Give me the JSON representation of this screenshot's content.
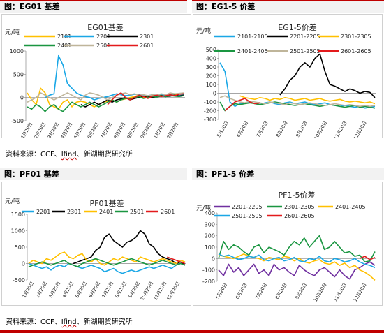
{
  "headers": {
    "top_left": "图：EG01 基差",
    "top_right": "图：EG1-5 价差",
    "bottom_left": "图：PF01 基差",
    "bottom_right": "图：PF1-5 价差"
  },
  "source": {
    "prefix": "资料来源：CCF、",
    "ifind": "Ifind",
    "suffix": "、新湖期货研究所"
  },
  "colors": {
    "accent": "#c00000",
    "header_bg": "#f2f2f2"
  },
  "chart_data": [
    {
      "id": "eg01",
      "type": "line",
      "title": "EG01基差",
      "ylabel": "元/吨",
      "ylim": [
        -500,
        1000
      ],
      "yticks": [
        -500,
        0,
        500,
        1000
      ],
      "xticks": [
        "1月20日",
        "2月20日",
        "3月20日",
        "4月20日",
        "5月20日",
        "6月20日",
        "7月20日",
        "8月20日",
        "9月20日",
        "10月20日",
        "11月20日",
        "12月20日"
      ],
      "legend_position": "top",
      "series": [
        {
          "name": "2101",
          "color": "#ffc000",
          "values": [
            100,
            -50,
            -150,
            200,
            100,
            -150,
            -200,
            -250,
            -100,
            -50,
            -200,
            -100,
            -80,
            -100,
            -150,
            -200,
            -150,
            -100,
            -80,
            -50,
            -100,
            -50,
            -30,
            0,
            20,
            50,
            0,
            30,
            50,
            20,
            60,
            40,
            50,
            80,
            40,
            60
          ]
        },
        {
          "name": "2201",
          "color": "#1aa7e6",
          "values": [
            null,
            null,
            null,
            null,
            0,
            50,
            80,
            900,
            700,
            300,
            200,
            100,
            50,
            20,
            0,
            -50,
            -20,
            0,
            20,
            50,
            80,
            60,
            40,
            50,
            70,
            60,
            50,
            40,
            60,
            50,
            70,
            40,
            60,
            50,
            40,
            60
          ]
        },
        {
          "name": "2301",
          "color": "#000000",
          "values": [
            null,
            null,
            null,
            null,
            null,
            null,
            null,
            null,
            null,
            null,
            null,
            null,
            -150,
            -200,
            -150,
            -100,
            -150,
            -100,
            -50,
            -100,
            -50,
            -30,
            0,
            -50,
            -20,
            0,
            20,
            30,
            0,
            20,
            40,
            20,
            30,
            50,
            30,
            50
          ]
        },
        {
          "name": "2401",
          "color": "#1a9641",
          "values": [
            -200,
            -250,
            -150,
            -200,
            -300,
            -200,
            -150,
            -250,
            -300,
            -200,
            -100,
            -150,
            -200,
            -150,
            -100,
            -150,
            -200,
            -150,
            -100,
            -50,
            -100,
            -50,
            -20,
            -30,
            0,
            20,
            -20,
            0,
            20,
            10,
            30,
            20,
            40,
            30,
            20,
            40
          ]
        },
        {
          "name": "2501",
          "color": "#bfb59a",
          "values": [
            -100,
            -50,
            0,
            100,
            50,
            0,
            -50,
            0,
            50,
            100,
            50,
            0,
            -50,
            50,
            100,
            80,
            50,
            0,
            -50,
            0,
            50,
            80,
            100,
            60,
            80,
            50,
            60,
            40,
            60,
            50,
            80,
            60,
            100,
            80,
            90,
            100
          ]
        },
        {
          "name": "2601",
          "color": "#e31a1c",
          "values": [
            null,
            null,
            null,
            null,
            null,
            null,
            null,
            null,
            null,
            null,
            null,
            null,
            null,
            null,
            null,
            null,
            null,
            null,
            -150,
            -50,
            50,
            100,
            0,
            -50,
            0,
            50,
            20,
            -20,
            30,
            50,
            20,
            40,
            60,
            40,
            70,
            80
          ]
        }
      ]
    },
    {
      "id": "eg15",
      "type": "line",
      "title": "EG1-5价差",
      "ylabel": "元/吨",
      "ylim": [
        -300,
        500
      ],
      "yticks": [
        -300,
        -200,
        -100,
        0,
        100,
        200,
        300,
        400,
        500
      ],
      "xticks": [
        "5月20日",
        "6月20日",
        "7月20日",
        "8月20日",
        "9月20日",
        "10月20日",
        "11月20日",
        "12月20日"
      ],
      "legend_position": "top",
      "series": [
        {
          "name": "2101-2105",
          "color": "#1aa7e6",
          "values": [
            350,
            250,
            -100,
            -150,
            -120,
            -110,
            -100,
            -120,
            -130,
            -110,
            -100,
            -120,
            -130,
            -110,
            -100,
            -120,
            -110,
            -100,
            -120,
            -130,
            -120,
            -110,
            -130,
            -140,
            -150,
            -140,
            -150,
            -160,
            -150,
            -170,
            -160,
            -150
          ]
        },
        {
          "name": "2201-2205",
          "color": "#000000",
          "values": [
            null,
            null,
            null,
            null,
            null,
            null,
            null,
            null,
            null,
            null,
            null,
            null,
            -20,
            50,
            150,
            200,
            300,
            350,
            300,
            400,
            450,
            250,
            100,
            80,
            50,
            20,
            50,
            30,
            0,
            20,
            10,
            -50
          ]
        },
        {
          "name": "2301-2305",
          "color": "#ffc000",
          "values": [
            null,
            null,
            null,
            null,
            -30,
            -50,
            -60,
            -70,
            -50,
            -60,
            -80,
            -60,
            -70,
            -50,
            -60,
            -80,
            -70,
            -60,
            -80,
            -70,
            -60,
            -80,
            -90,
            -80,
            -70,
            -90,
            -100,
            -90,
            -100,
            -110,
            -100,
            -120
          ]
        },
        {
          "name": "2401-2405",
          "color": "#1a9641",
          "values": [
            -100,
            -200,
            -150,
            -120,
            -130,
            -120,
            -110,
            -120,
            -130,
            -120,
            -110,
            -100,
            -110,
            -120,
            -130,
            -140,
            -130,
            -120,
            -130,
            -140,
            -150,
            -140,
            -130,
            -140,
            -150,
            -160,
            -150,
            -140,
            -160,
            -150,
            -160,
            -170
          ]
        },
        {
          "name": "2501-2505",
          "color": "#bfb59a",
          "values": [
            -50,
            -30,
            -60,
            -80,
            -100,
            -110,
            -90,
            -100,
            -110,
            -120,
            -100,
            -110,
            -120,
            -130,
            -110,
            -120,
            -130,
            -120,
            -110,
            -120,
            -130,
            -140,
            -130,
            -120,
            -130,
            -140,
            -130,
            -140,
            -150,
            -140,
            -150,
            -140
          ]
        },
        {
          "name": "2601-2605",
          "color": "#e31a1c",
          "values": [
            null,
            -200,
            -150,
            -100,
            -80,
            -60,
            -100,
            -120,
            -110,
            null,
            null,
            null,
            null,
            null,
            null,
            null,
            null,
            null,
            null,
            null,
            null,
            null,
            null,
            null,
            null,
            null,
            null,
            null,
            null,
            null,
            null,
            null
          ]
        }
      ]
    },
    {
      "id": "pf01",
      "type": "line",
      "title": "PF01基差",
      "ylabel": "元/吨",
      "ylim": [
        -500,
        1500
      ],
      "yticks": [
        -500,
        0,
        500,
        1000,
        1500
      ],
      "xticks": [
        "1月20日",
        "2月20日",
        "3月20日",
        "4月20日",
        "5月20日",
        "6月20日",
        "7月20日",
        "8月20日",
        "9月20日",
        "10月20日",
        "11月20日",
        "12月20日"
      ],
      "legend_position": "top",
      "series": [
        {
          "name": "2201",
          "color": "#1aa7e6",
          "values": [
            0,
            -50,
            -100,
            -150,
            -100,
            -200,
            -100,
            -50,
            -100,
            0,
            -50,
            -100,
            -150,
            -100,
            -50,
            -100,
            -150,
            -250,
            -200,
            -150,
            -250,
            -300,
            -250,
            -200,
            -250,
            -200,
            -150,
            -100,
            -150,
            -100,
            -50,
            -100,
            -150,
            -50,
            0,
            -50
          ]
        },
        {
          "name": "2301",
          "color": "#000000",
          "values": [
            null,
            null,
            null,
            null,
            null,
            null,
            null,
            null,
            null,
            null,
            0,
            50,
            100,
            150,
            200,
            400,
            500,
            800,
            900,
            700,
            600,
            500,
            650,
            700,
            800,
            1000,
            900,
            600,
            500,
            300,
            200,
            150,
            100,
            0,
            50,
            -50
          ]
        },
        {
          "name": "2401",
          "color": "#ffc000",
          "values": [
            0,
            100,
            50,
            0,
            150,
            100,
            200,
            300,
            350,
            200,
            150,
            250,
            300,
            100,
            50,
            150,
            0,
            -50,
            50,
            150,
            100,
            200,
            150,
            100,
            50,
            200,
            150,
            100,
            50,
            100,
            150,
            100,
            50,
            0,
            100,
            50
          ]
        },
        {
          "name": "2501",
          "color": "#1a9641",
          "values": [
            -100,
            -50,
            0,
            50,
            0,
            -50,
            0,
            50,
            100,
            0,
            -50,
            -100,
            0,
            50,
            100,
            150,
            100,
            50,
            0,
            -50,
            0,
            50,
            100,
            150,
            100,
            50,
            0,
            -50,
            0,
            50,
            100,
            50,
            0,
            -50,
            0,
            -50
          ]
        },
        {
          "name": "2601",
          "color": "#e31a1c",
          "values": [
            null,
            null,
            null,
            null,
            null,
            null,
            null,
            null,
            null,
            null,
            null,
            null,
            null,
            null,
            null,
            null,
            null,
            null,
            null,
            null,
            null,
            null,
            null,
            null,
            null,
            null,
            null,
            null,
            null,
            null,
            null,
            200,
            150,
            100,
            50,
            0
          ]
        }
      ]
    },
    {
      "id": "pf15",
      "type": "line",
      "title": "PF1-5价差",
      "ylabel": "元/吨",
      "ylim": [
        -200,
        400
      ],
      "yticks": [
        -200,
        -100,
        0,
        100,
        200,
        300,
        400
      ],
      "xticks": [
        "5月20日",
        "6月20日",
        "7月20日",
        "8月20日",
        "9月20日",
        "10月20日",
        "11月20日",
        "12月20日"
      ],
      "legend_position": "top",
      "series": [
        {
          "name": "2201-2205",
          "color": "#7030a0",
          "values": [
            -100,
            -150,
            -50,
            -120,
            -80,
            -150,
            -100,
            -50,
            -130,
            -100,
            -150,
            -50,
            -100,
            -80,
            -120,
            -150,
            -60,
            -100,
            -130,
            -150,
            -100,
            -80,
            -120,
            -160,
            -100,
            -150,
            -180,
            -100,
            -80,
            -50,
            -30,
            -60
          ]
        },
        {
          "name": "2301-2305",
          "color": "#1a9641",
          "values": [
            0,
            150,
            80,
            120,
            100,
            60,
            30,
            100,
            120,
            50,
            100,
            80,
            60,
            30,
            100,
            150,
            120,
            180,
            100,
            150,
            200,
            80,
            100,
            150,
            100,
            50,
            60,
            20,
            30,
            -30,
            -20,
            60
          ]
        },
        {
          "name": "2401-2405",
          "color": "#ffc000",
          "values": [
            30,
            20,
            10,
            0,
            20,
            40,
            20,
            10,
            0,
            -20,
            10,
            0,
            -10,
            20,
            10,
            -20,
            0,
            -30,
            -40,
            -20,
            -10,
            -40,
            -50,
            -30,
            -60,
            -40,
            -80,
            -60,
            -100,
            -120,
            -150,
            -190
          ]
        },
        {
          "name": "2501-2505",
          "color": "#1aa7e6",
          "values": [
            40,
            20,
            30,
            10,
            -10,
            0,
            20,
            10,
            30,
            -10,
            -20,
            0,
            10,
            -20,
            -10,
            10,
            -20,
            -30,
            0,
            -10,
            20,
            -20,
            -30,
            0,
            -10,
            -30,
            -20,
            0,
            -30,
            -50,
            -60,
            -80
          ]
        },
        {
          "name": "2601-2605",
          "color": "#e31a1c",
          "values": [
            null,
            null,
            null,
            null,
            null,
            null,
            null,
            null,
            null,
            null,
            null,
            null,
            null,
            null,
            null,
            null,
            null,
            null,
            null,
            null,
            null,
            null,
            null,
            null,
            null,
            null,
            null,
            null,
            0,
            20,
            -10,
            10
          ]
        }
      ]
    }
  ]
}
